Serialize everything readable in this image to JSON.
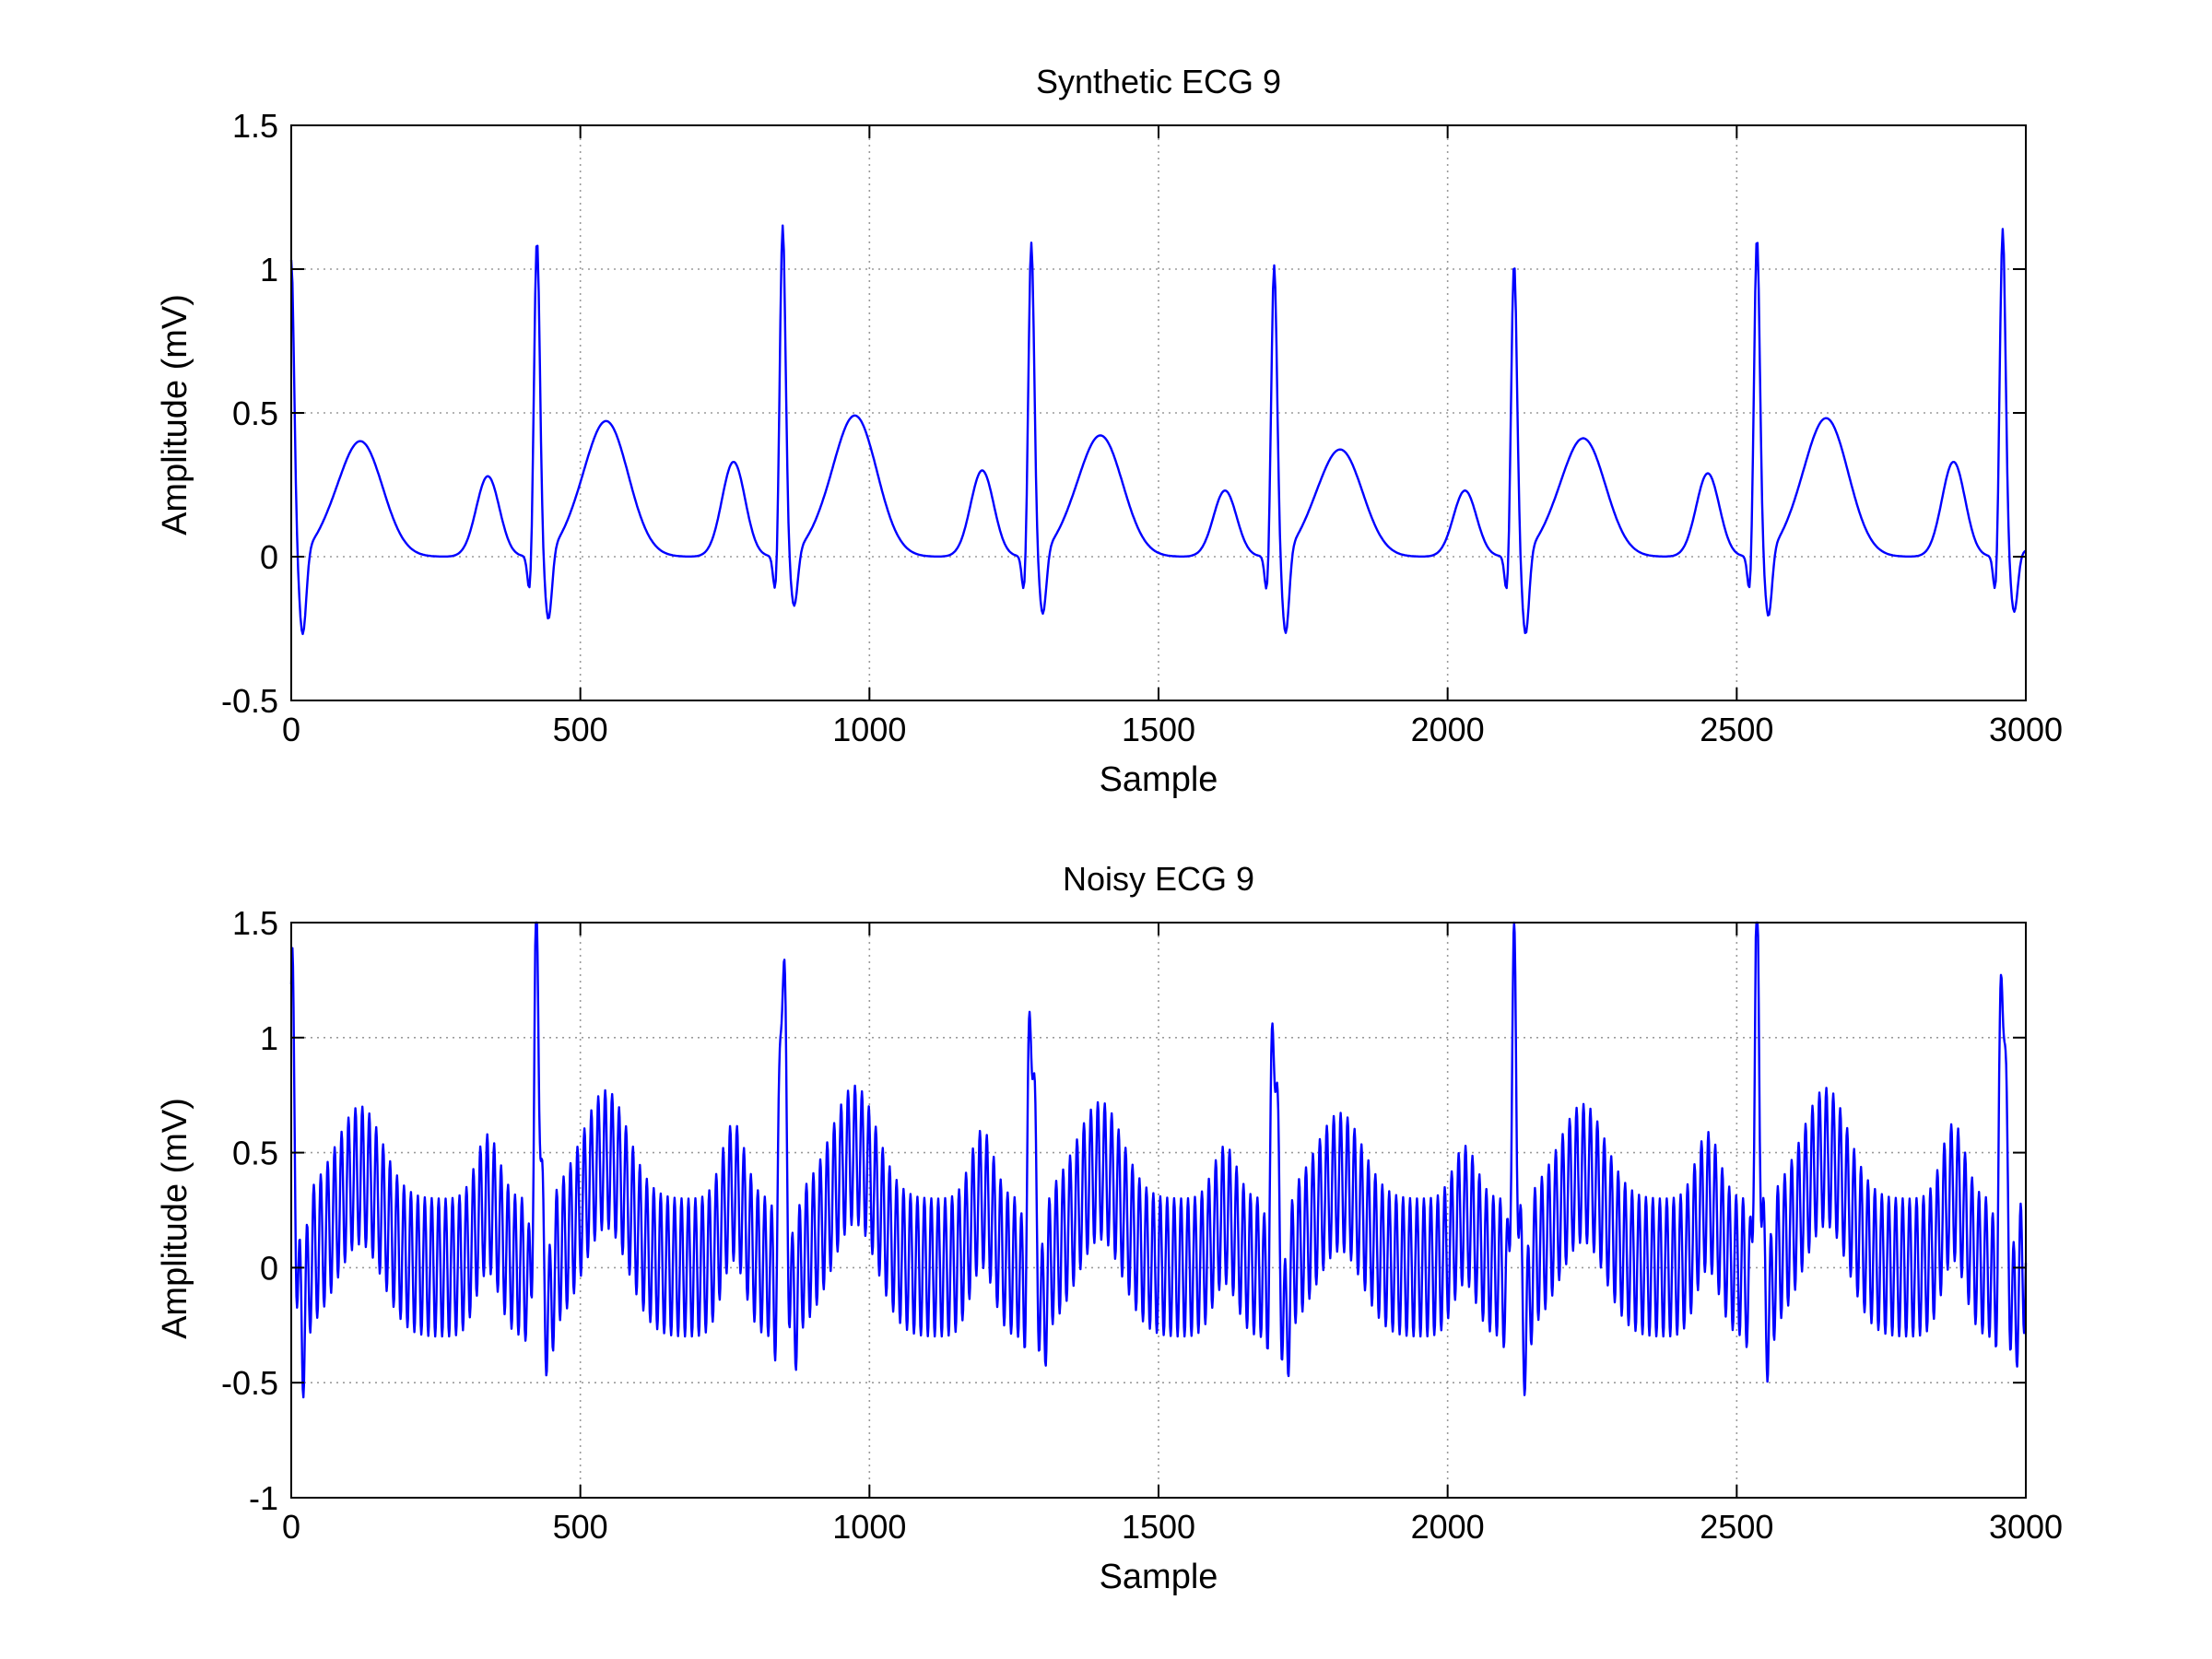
{
  "chart_data": [
    {
      "type": "line",
      "title": "Synthetic ECG 9",
      "xlabel": "Sample",
      "ylabel": "Amplitude (mV)",
      "xlim": [
        0,
        3000
      ],
      "ylim": [
        -0.5,
        1.5
      ],
      "xticks": [
        0,
        500,
        1000,
        1500,
        2000,
        2500,
        3000
      ],
      "yticks": [
        -0.5,
        0,
        0.5,
        1,
        1.5
      ],
      "xtick_labels": [
        "0",
        "500",
        "1000",
        "1500",
        "2000",
        "2500",
        "3000"
      ],
      "ytick_labels": [
        "-0.5",
        "0",
        "0.5",
        "1",
        "1.5"
      ],
      "grid": true,
      "line_color": "#0000ff",
      "beats": [
        {
          "r_sample": 0,
          "r_amp": 1.08
        },
        {
          "r_sample": 425,
          "r_amp": 1.15
        },
        {
          "r_sample": 850,
          "r_amp": 1.2
        },
        {
          "r_sample": 1280,
          "r_amp": 1.14
        },
        {
          "r_sample": 1700,
          "r_amp": 1.06
        },
        {
          "r_sample": 2115,
          "r_amp": 1.07
        },
        {
          "r_sample": 2535,
          "r_amp": 1.16
        },
        {
          "r_sample": 2960,
          "r_amp": 1.19
        }
      ],
      "t_waves": [
        {
          "sample": 120,
          "amp": 0.4
        },
        {
          "sample": 545,
          "amp": 0.47
        },
        {
          "sample": 975,
          "amp": 0.49
        },
        {
          "sample": 1400,
          "amp": 0.42
        },
        {
          "sample": 1815,
          "amp": 0.37
        },
        {
          "sample": 2235,
          "amp": 0.41
        },
        {
          "sample": 2655,
          "amp": 0.48
        }
      ],
      "p_waves": [
        {
          "sample": 340,
          "amp": 0.28
        },
        {
          "sample": 765,
          "amp": 0.33
        },
        {
          "sample": 1195,
          "amp": 0.3
        },
        {
          "sample": 1615,
          "amp": 0.23
        },
        {
          "sample": 2030,
          "amp": 0.23
        },
        {
          "sample": 2450,
          "amp": 0.29
        },
        {
          "sample": 2875,
          "amp": 0.33
        }
      ],
      "s_troughs": [
        {
          "sample": 20,
          "amp": -0.34
        },
        {
          "sample": 445,
          "amp": -0.29
        },
        {
          "sample": 870,
          "amp": -0.24
        },
        {
          "sample": 1300,
          "amp": -0.27
        },
        {
          "sample": 1720,
          "amp": -0.34
        },
        {
          "sample": 2135,
          "amp": -0.34
        },
        {
          "sample": 2555,
          "amp": -0.28
        },
        {
          "sample": 2980,
          "amp": -0.25
        }
      ]
    },
    {
      "type": "line",
      "title": "Noisy ECG 9",
      "xlabel": "Sample",
      "ylabel": "Amplitude (mV)",
      "xlim": [
        0,
        3000
      ],
      "ylim": [
        -1,
        1.5
      ],
      "xticks": [
        0,
        500,
        1000,
        1500,
        2000,
        2500,
        3000
      ],
      "yticks": [
        -1,
        -0.5,
        0,
        0.5,
        1,
        1.5
      ],
      "xtick_labels": [
        "0",
        "500",
        "1000",
        "1500",
        "2000",
        "2500",
        "3000"
      ],
      "ytick_labels": [
        "-1",
        "-0.5",
        "0",
        "0.5",
        "1",
        "1.5"
      ],
      "grid": true,
      "line_color": "#0000ff",
      "noise": {
        "amplitude_mV": 0.3,
        "period_samples": 12
      },
      "peaks": [
        {
          "sample": 0,
          "amp": 1.35
        },
        {
          "sample": 425,
          "amp": 1.45
        },
        {
          "sample": 850,
          "amp": 1.45
        },
        {
          "sample": 1280,
          "amp": 1.23
        },
        {
          "sample": 1700,
          "amp": 1.25
        },
        {
          "sample": 2115,
          "amp": 1.35
        },
        {
          "sample": 2535,
          "amp": 1.45
        },
        {
          "sample": 2960,
          "amp": 1.39
        }
      ]
    }
  ]
}
